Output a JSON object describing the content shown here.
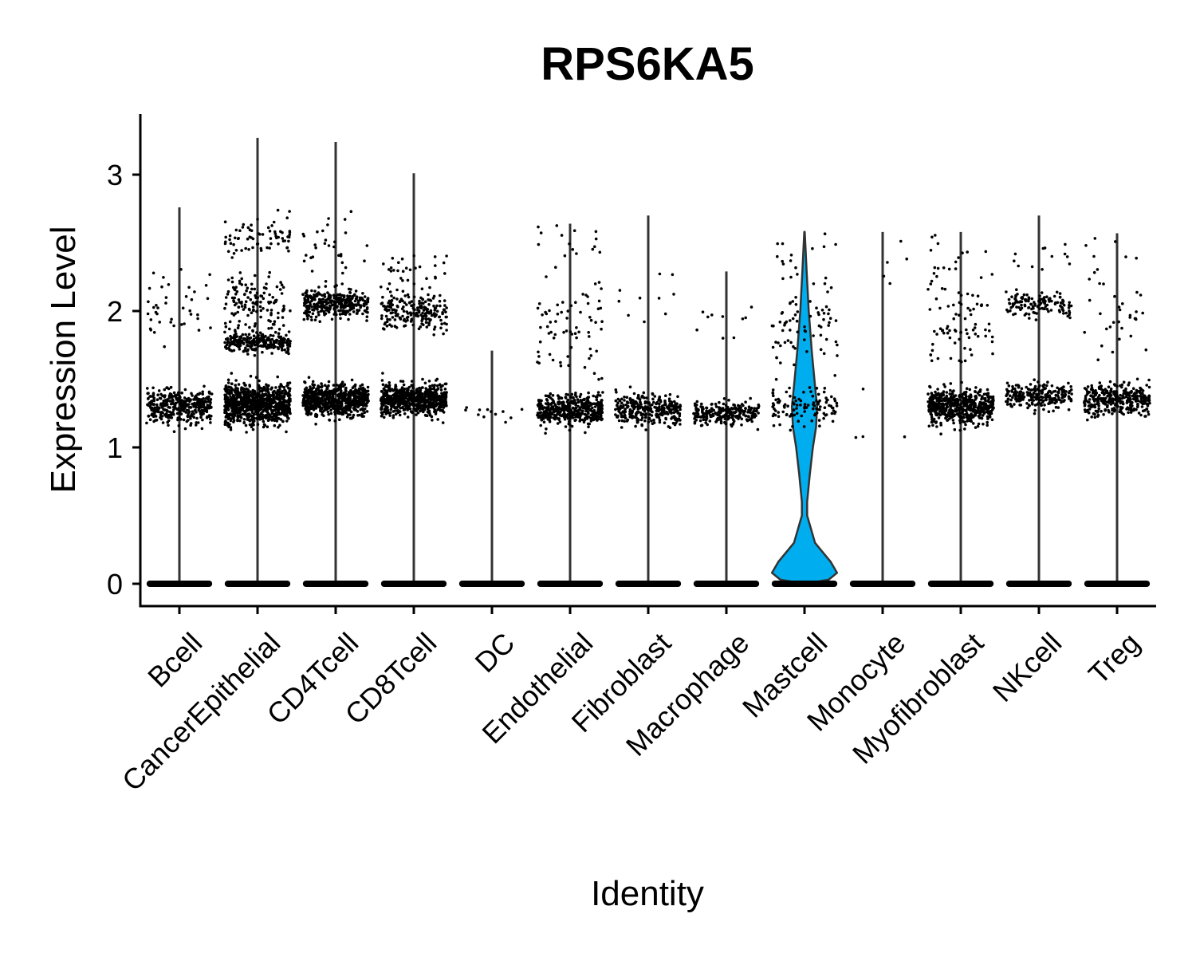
{
  "chart_data": {
    "type": "violin",
    "title": "RPS6KA5",
    "xlabel": "Identity",
    "ylabel": "Expression Level",
    "ylim": [
      -0.17,
      3.45
    ],
    "yticks": [
      0,
      1,
      2,
      3
    ],
    "ytick_labels": [
      "0",
      "1",
      "2",
      "3"
    ],
    "grid": false,
    "legend": "none",
    "violin_fill": "#00AEEF",
    "point_color": "#000000",
    "categories": [
      "Bcell",
      "CancerEpithelial",
      "CD4Tcell",
      "CD8Tcell",
      "DC",
      "Endothelial",
      "Fibroblast",
      "Macrophage",
      "Mastcell",
      "Monocyte",
      "Myofibroblast",
      "NKcell",
      "Treg"
    ],
    "series": [
      {
        "category": "Bcell",
        "max": 2.76,
        "clusters": [
          {
            "center": 1.3,
            "spread": 0.09,
            "n": 380
          },
          {
            "center": 2.0,
            "spread": 0.2,
            "n": 40
          }
        ]
      },
      {
        "category": "CancerEpithelial",
        "max": 3.27,
        "clusters": [
          {
            "center": 1.32,
            "spread": 0.1,
            "n": 900
          },
          {
            "center": 1.77,
            "spread": 0.05,
            "n": 260
          },
          {
            "center": 2.05,
            "spread": 0.15,
            "n": 140
          },
          {
            "center": 2.55,
            "spread": 0.1,
            "n": 70
          }
        ]
      },
      {
        "category": "CD4Tcell",
        "max": 3.24,
        "clusters": [
          {
            "center": 1.35,
            "spread": 0.08,
            "n": 700
          },
          {
            "center": 2.05,
            "spread": 0.07,
            "n": 330
          },
          {
            "center": 2.45,
            "spread": 0.2,
            "n": 30
          }
        ]
      },
      {
        "category": "CD8Tcell",
        "max": 3.01,
        "clusters": [
          {
            "center": 1.35,
            "spread": 0.08,
            "n": 650
          },
          {
            "center": 2.0,
            "spread": 0.1,
            "n": 210
          },
          {
            "center": 2.3,
            "spread": 0.08,
            "n": 30
          }
        ]
      },
      {
        "category": "DC",
        "max": 1.71,
        "clusters": [
          {
            "center": 1.25,
            "spread": 0.05,
            "n": 12
          }
        ]
      },
      {
        "category": "Endothelial",
        "max": 2.64,
        "clusters": [
          {
            "center": 1.28,
            "spread": 0.08,
            "n": 430
          },
          {
            "center": 1.9,
            "spread": 0.25,
            "n": 70
          },
          {
            "center": 2.5,
            "spread": 0.12,
            "n": 15
          }
        ]
      },
      {
        "category": "Fibroblast",
        "max": 2.7,
        "clusters": [
          {
            "center": 1.28,
            "spread": 0.08,
            "n": 300
          },
          {
            "center": 2.1,
            "spread": 0.2,
            "n": 10
          }
        ]
      },
      {
        "category": "Macrophage",
        "max": 2.29,
        "clusters": [
          {
            "center": 1.25,
            "spread": 0.06,
            "n": 250
          },
          {
            "center": 1.9,
            "spread": 0.15,
            "n": 10
          }
        ]
      },
      {
        "category": "Mastcell",
        "max": 2.58,
        "clusters": [
          {
            "center": 1.3,
            "spread": 0.1,
            "n": 110
          },
          {
            "center": 1.9,
            "spread": 0.2,
            "n": 70
          },
          {
            "center": 2.4,
            "spread": 0.12,
            "n": 15
          }
        ]
      },
      {
        "category": "Monocyte",
        "max": 2.58,
        "clusters": [
          {
            "center": 1.4,
            "spread": 0.3,
            "n": 4
          },
          {
            "center": 2.4,
            "spread": 0.15,
            "n": 5
          }
        ]
      },
      {
        "category": "Myofibroblast",
        "max": 2.58,
        "clusters": [
          {
            "center": 1.3,
            "spread": 0.09,
            "n": 560
          },
          {
            "center": 1.9,
            "spread": 0.25,
            "n": 80
          },
          {
            "center": 2.4,
            "spread": 0.1,
            "n": 15
          }
        ]
      },
      {
        "category": "NKcell",
        "max": 2.7,
        "clusters": [
          {
            "center": 1.38,
            "spread": 0.07,
            "n": 230
          },
          {
            "center": 2.05,
            "spread": 0.06,
            "n": 130
          },
          {
            "center": 2.4,
            "spread": 0.15,
            "n": 12
          }
        ]
      },
      {
        "category": "Treg",
        "max": 2.57,
        "clusters": [
          {
            "center": 1.35,
            "spread": 0.08,
            "n": 330
          },
          {
            "center": 1.95,
            "spread": 0.2,
            "n": 30
          },
          {
            "center": 2.4,
            "spread": 0.12,
            "n": 8
          }
        ]
      }
    ]
  }
}
